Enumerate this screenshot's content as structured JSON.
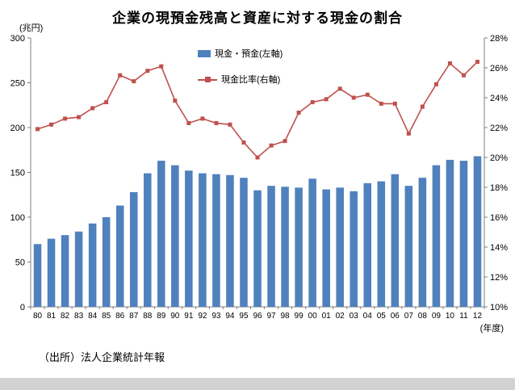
{
  "title": "企業の現預金残高と資産に対する現金の割合",
  "source": "（出所）法人企業統計年報",
  "chart_data": {
    "type": "bar",
    "subtype": "bar+line combo",
    "title": "企業の現預金残高と資産に対する現金の割合",
    "categories": [
      "80",
      "81",
      "82",
      "83",
      "84",
      "85",
      "86",
      "87",
      "88",
      "89",
      "90",
      "91",
      "92",
      "93",
      "94",
      "95",
      "96",
      "97",
      "98",
      "99",
      "00",
      "01",
      "02",
      "03",
      "04",
      "05",
      "06",
      "07",
      "08",
      "09",
      "10",
      "11",
      "12"
    ],
    "series": [
      {
        "name": "現金・預金(左軸)",
        "chart_type": "bar",
        "axis": "left",
        "color": "#4F81BD",
        "values": [
          70,
          76,
          80,
          84,
          93,
          100,
          113,
          128,
          149,
          163,
          158,
          152,
          149,
          148,
          147,
          144,
          130,
          135,
          134,
          133,
          143,
          131,
          133,
          129,
          138,
          140,
          148,
          135,
          144,
          158,
          164,
          163,
          168
        ]
      },
      {
        "name": "現金比率(右軸)",
        "chart_type": "line",
        "axis": "right",
        "color": "#C0504D",
        "values": [
          21.9,
          22.2,
          22.6,
          22.7,
          23.3,
          23.7,
          25.5,
          25.1,
          25.8,
          26.1,
          23.8,
          22.3,
          22.6,
          22.3,
          22.2,
          21.0,
          20.0,
          20.8,
          21.1,
          23.0,
          23.7,
          23.9,
          24.6,
          24.0,
          24.2,
          23.6,
          23.6,
          21.6,
          23.4,
          24.9,
          26.3,
          25.5,
          26.4
        ]
      }
    ],
    "left_axis": {
      "label": "(兆円)",
      "min": 0,
      "max": 300,
      "step": 50
    },
    "right_axis": {
      "min": 10,
      "max": 28,
      "step": 2,
      "suffix": "%"
    },
    "x_axis_label": "(年度)",
    "legend_position": "top-center-inside",
    "grid": false
  }
}
